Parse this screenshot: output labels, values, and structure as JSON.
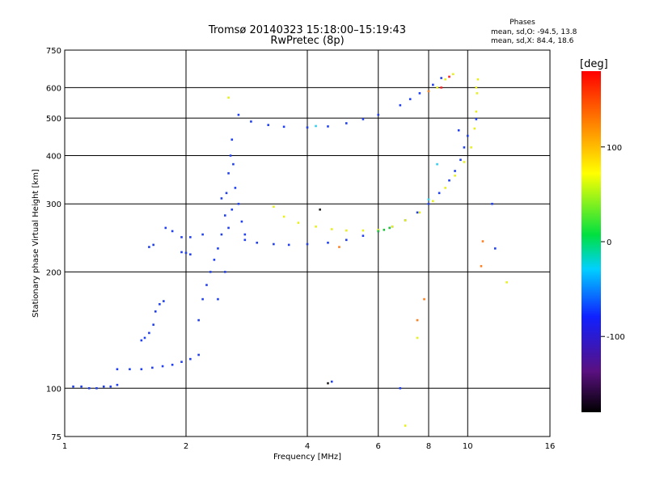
{
  "chart_data": {
    "type": "scatter",
    "title": "Tromsø 20140323 15:18:00–15:19:43",
    "subtitle": "RwPretec (8p)",
    "xlabel": "Frequency [MHz]",
    "ylabel": "Stationary phase Virtual Height [km]",
    "x_scale": "log",
    "y_scale": "log",
    "xlim": [
      1,
      16
    ],
    "ylim": [
      75,
      750
    ],
    "x_ticks": [
      1,
      2,
      4,
      6,
      8,
      10,
      16
    ],
    "y_ticks": [
      75,
      100,
      200,
      300,
      400,
      500,
      600,
      750
    ],
    "grid": true,
    "stats": {
      "heading": "Phases",
      "line_o": "mean, sd,O:  -94.5, 13.8",
      "line_x": "mean, sd,X:  84.4, 18.6"
    },
    "colorbar": {
      "label": "[deg]",
      "range": [
        -180,
        180
      ],
      "ticks": [
        100,
        0,
        -100
      ]
    },
    "series": [
      {
        "color": "#2040f0",
        "phase": -95,
        "points": [
          [
            1.05,
            101
          ],
          [
            1.1,
            101
          ],
          [
            1.15,
            100
          ],
          [
            1.2,
            100
          ],
          [
            1.25,
            101
          ],
          [
            1.3,
            101
          ],
          [
            1.35,
            102
          ]
        ]
      },
      {
        "color": "#2040f0",
        "phase": -95,
        "points": [
          [
            1.35,
            112
          ],
          [
            1.45,
            112
          ],
          [
            1.55,
            112
          ],
          [
            1.65,
            113
          ],
          [
            1.75,
            114
          ],
          [
            1.85,
            115
          ],
          [
            1.95,
            117
          ],
          [
            2.05,
            119
          ],
          [
            2.15,
            122
          ]
        ]
      },
      {
        "color": "#2040f0",
        "phase": -95,
        "points": [
          [
            1.55,
            133
          ],
          [
            1.58,
            135
          ],
          [
            1.62,
            139
          ],
          [
            1.66,
            146
          ],
          [
            1.68,
            158
          ],
          [
            1.72,
            165
          ],
          [
            1.76,
            168
          ],
          [
            1.62,
            232
          ],
          [
            1.66,
            235
          ],
          [
            1.78,
            260
          ],
          [
            1.85,
            255
          ],
          [
            1.95,
            246
          ],
          [
            2.05,
            246
          ],
          [
            2.2,
            250
          ],
          [
            1.95,
            225
          ],
          [
            2.0,
            224
          ],
          [
            2.05,
            222
          ]
        ]
      },
      {
        "color": "#2040f0",
        "phase": -95,
        "points": [
          [
            2.15,
            150
          ],
          [
            2.2,
            170
          ],
          [
            2.25,
            185
          ],
          [
            2.3,
            200
          ],
          [
            2.35,
            215
          ],
          [
            2.4,
            230
          ],
          [
            2.45,
            250
          ],
          [
            2.5,
            280
          ],
          [
            2.52,
            320
          ],
          [
            2.55,
            360
          ],
          [
            2.58,
            400
          ],
          [
            2.6,
            440
          ],
          [
            2.62,
            380
          ],
          [
            2.65,
            330
          ],
          [
            2.7,
            300
          ],
          [
            2.75,
            270
          ],
          [
            2.8,
            250
          ],
          [
            2.4,
            170
          ],
          [
            2.5,
            200
          ],
          [
            2.6,
            290
          ],
          [
            2.45,
            310
          ],
          [
            2.55,
            260
          ]
        ]
      },
      {
        "color": "#2040f0",
        "phase": -95,
        "points": [
          [
            2.8,
            242
          ],
          [
            3.0,
            238
          ],
          [
            3.3,
            236
          ],
          [
            3.6,
            235
          ],
          [
            4.0,
            236
          ],
          [
            4.5,
            238
          ],
          [
            5.0,
            242
          ],
          [
            5.5,
            248
          ],
          [
            6.0,
            255
          ],
          [
            6.5,
            262
          ],
          [
            7.0,
            272
          ],
          [
            7.5,
            285
          ],
          [
            8.0,
            300
          ],
          [
            8.5,
            320
          ],
          [
            9.0,
            345
          ],
          [
            9.3,
            365
          ],
          [
            9.6,
            390
          ],
          [
            9.8,
            420
          ],
          [
            10.0,
            450
          ]
        ]
      },
      {
        "color": "#2040f0",
        "phase": -95,
        "points": [
          [
            2.7,
            510
          ],
          [
            2.9,
            490
          ],
          [
            3.2,
            480
          ],
          [
            3.5,
            475
          ],
          [
            4.0,
            473
          ],
          [
            4.5,
            476
          ],
          [
            5.0,
            485
          ],
          [
            5.5,
            497
          ],
          [
            6.0,
            510
          ],
          [
            6.8,
            540
          ],
          [
            7.2,
            560
          ],
          [
            7.6,
            580
          ],
          [
            8.2,
            610
          ],
          [
            8.6,
            635
          ]
        ]
      },
      {
        "color": "#e8f020",
        "phase": 95,
        "points": [
          [
            3.3,
            295
          ],
          [
            3.5,
            278
          ],
          [
            3.8,
            268
          ],
          [
            4.2,
            262
          ],
          [
            4.6,
            258
          ],
          [
            5.0,
            256
          ],
          [
            5.5,
            256
          ],
          [
            6.0,
            257
          ],
          [
            6.5,
            262
          ],
          [
            7.0,
            272
          ],
          [
            7.6,
            285
          ],
          [
            8.2,
            305
          ],
          [
            8.8,
            330
          ],
          [
            9.3,
            355
          ],
          [
            9.8,
            385
          ],
          [
            10.2,
            420
          ],
          [
            10.4,
            470
          ],
          [
            10.5,
            520
          ],
          [
            10.55,
            580
          ],
          [
            10.6,
            630
          ]
        ]
      },
      {
        "color": "#e8f020",
        "phase": 95,
        "points": [
          [
            8.4,
            600
          ],
          [
            8.8,
            630
          ],
          [
            9.2,
            650
          ]
        ]
      },
      {
        "color": "#20c040",
        "phase": 20,
        "points": [
          [
            6.0,
            255
          ],
          [
            6.2,
            257
          ],
          [
            6.4,
            260
          ]
        ]
      },
      {
        "color": "#ff2020",
        "phase": 170,
        "points": [
          [
            8.6,
            600
          ],
          [
            9.0,
            640
          ]
        ]
      },
      {
        "color": "#30d0f0",
        "phase": -60,
        "points": [
          [
            4.2,
            477
          ],
          [
            8.0,
            308
          ],
          [
            8.4,
            380
          ]
        ]
      },
      {
        "color": "#ff8020",
        "phase": 150,
        "points": [
          [
            4.8,
            232
          ],
          [
            8.0,
            587
          ],
          [
            7.8,
            170
          ],
          [
            7.5,
            150
          ],
          [
            10.8,
            207
          ],
          [
            10.9,
            240
          ]
        ]
      },
      {
        "color": "#e8f020",
        "phase": 90,
        "points": [
          [
            12.5,
            188
          ],
          [
            7.5,
            135
          ],
          [
            7.0,
            80
          ],
          [
            10.5,
            600
          ],
          [
            2.55,
            565
          ]
        ]
      },
      {
        "color": "#2040f0",
        "phase": -95,
        "points": [
          [
            11.5,
            300
          ],
          [
            11.7,
            230
          ],
          [
            4.6,
            104
          ],
          [
            6.8,
            100
          ],
          [
            9.5,
            465
          ],
          [
            10.5,
            497
          ]
        ]
      },
      {
        "color": "#202020",
        "phase": -170,
        "points": [
          [
            4.3,
            290
          ],
          [
            4.5,
            103
          ]
        ]
      }
    ]
  }
}
